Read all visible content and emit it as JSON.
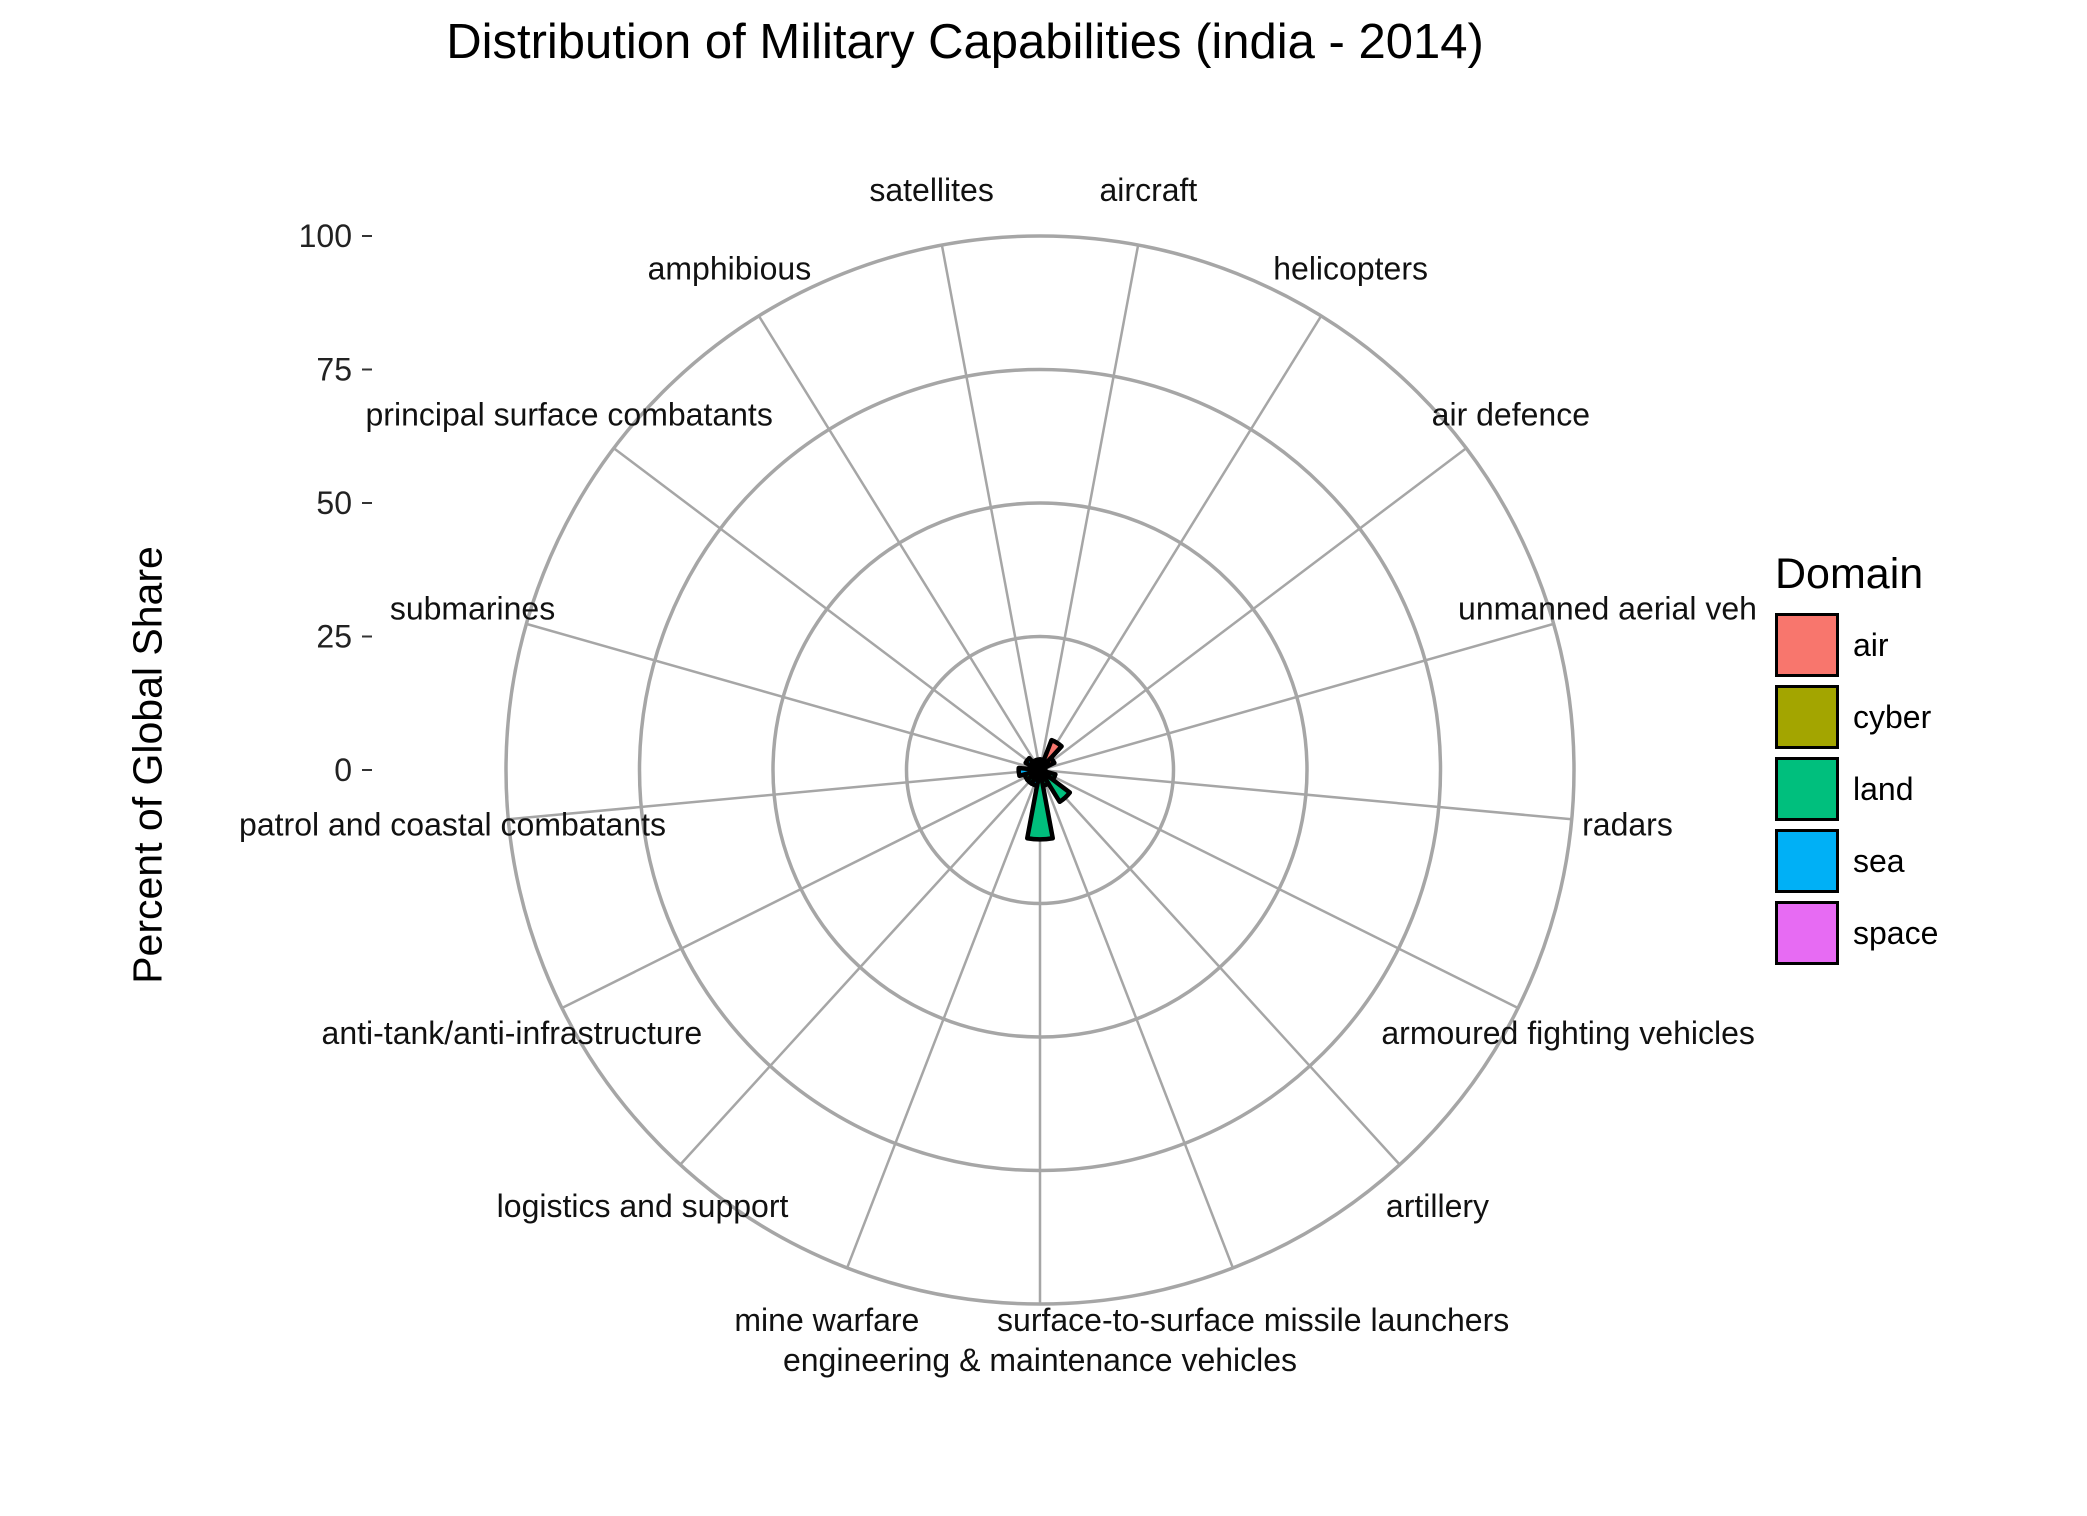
{
  "chart_data": {
    "type": "bar",
    "coord": "polar",
    "title": "Distribution of Military Capabilities (india - 2014)",
    "xlabel": "",
    "ylabel": "Percent of Global Share",
    "ylim": [
      0,
      100
    ],
    "yticks": [
      "0",
      "25",
      "50",
      "75",
      "100"
    ],
    "grid": true,
    "legend": {
      "title": "Domain",
      "position": "right",
      "entries": [
        {
          "name": "air",
          "color": "#F8766D"
        },
        {
          "name": "cyber",
          "color": "#A3A500"
        },
        {
          "name": "land",
          "color": "#00BF7D"
        },
        {
          "name": "sea",
          "color": "#00B0F6"
        },
        {
          "name": "space",
          "color": "#E76BF3"
        }
      ]
    },
    "categories": [
      {
        "label": "aircraft",
        "domain": "air",
        "value": 2
      },
      {
        "label": "helicopters",
        "domain": "air",
        "value": 6
      },
      {
        "label": "air defence",
        "domain": "air",
        "value": 3
      },
      {
        "label": "unmanned aerial veh",
        "domain": "air",
        "value": 1
      },
      {
        "label": "radars",
        "domain": "air",
        "value": 1
      },
      {
        "label": "armoured fighting vehicles",
        "domain": "land",
        "value": 3
      },
      {
        "label": "artillery",
        "domain": "land",
        "value": 7
      },
      {
        "label": "surface-to-surface missile launchers",
        "domain": "land",
        "value": 3
      },
      {
        "label": "engineering & maintenance vehicles",
        "domain": "land",
        "value": 13
      },
      {
        "label": "mine warfare",
        "domain": "sea",
        "value": 3
      },
      {
        "label": "logistics and support",
        "domain": "land",
        "value": 3
      },
      {
        "label": "anti-tank/anti-infrastructure",
        "domain": "land",
        "value": 3
      },
      {
        "label": "patrol and coastal combatants",
        "domain": "sea",
        "value": 4
      },
      {
        "label": "submarines",
        "domain": "sea",
        "value": 2
      },
      {
        "label": "principal surface combatants",
        "domain": "sea",
        "value": 3
      },
      {
        "label": "amphibious",
        "domain": "sea",
        "value": 2
      },
      {
        "label": "satellites",
        "domain": "space",
        "value": 2
      }
    ]
  }
}
